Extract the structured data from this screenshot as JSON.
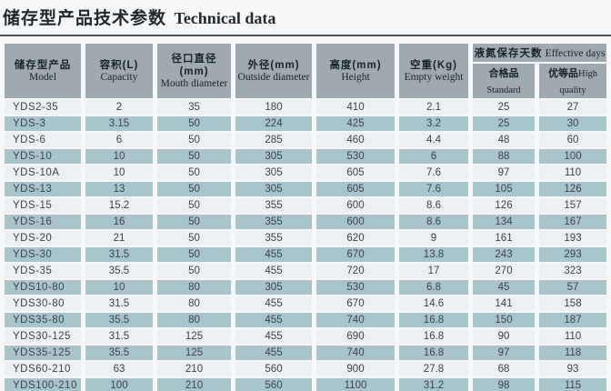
{
  "title": {
    "zh": "储存型产品技术参数",
    "en": "Technical data"
  },
  "table": {
    "columns": [
      {
        "zh": "储存型产品",
        "en": "Model"
      },
      {
        "zh": "容积(L)",
        "en": "Capacity"
      },
      {
        "zh": "径口直径(mm)",
        "en": "Mouth diameter"
      },
      {
        "zh": "外径(mm)",
        "en": "Outside diameter"
      },
      {
        "zh": "高度(mm)",
        "en": "Height"
      },
      {
        "zh": "空重(Kg)",
        "en": "Empty weight"
      }
    ],
    "group": {
      "zh": "液氮保存天数",
      "en": "Effective days",
      "sub": [
        {
          "zh": "合格品",
          "en": "Standard"
        },
        {
          "zh": "优等品",
          "en": "High quality"
        }
      ]
    },
    "rows": [
      [
        "YDS2-35",
        "2",
        "35",
        "180",
        "410",
        "2.1",
        "25",
        "27"
      ],
      [
        "YDS-3",
        "3.15",
        "50",
        "224",
        "425",
        "3.2",
        "25",
        "30"
      ],
      [
        "YDS-6",
        "6",
        "50",
        "285",
        "460",
        "4.4",
        "48",
        "60"
      ],
      [
        "YDS-10",
        "10",
        "50",
        "305",
        "530",
        "6",
        "88",
        "100"
      ],
      [
        "YDS-10A",
        "10",
        "50",
        "305",
        "605",
        "7.6",
        "97",
        "110"
      ],
      [
        "YDS-13",
        "13",
        "50",
        "305",
        "605",
        "7.6",
        "105",
        "126"
      ],
      [
        "YDS-15",
        "15.2",
        "50",
        "355",
        "600",
        "8.6",
        "126",
        "157"
      ],
      [
        "YDS-16",
        "16",
        "50",
        "355",
        "600",
        "8.6",
        "134",
        "167"
      ],
      [
        "YDS-20",
        "21",
        "50",
        "355",
        "620",
        "9",
        "161",
        "193"
      ],
      [
        "YDS-30",
        "31.5",
        "50",
        "455",
        "670",
        "13.8",
        "243",
        "293"
      ],
      [
        "YDS-35",
        "35.5",
        "50",
        "455",
        "720",
        "17",
        "270",
        "323"
      ],
      [
        "YDS10-80",
        "10",
        "80",
        "305",
        "530",
        "6.8",
        "45",
        "57"
      ],
      [
        "YDS30-80",
        "31.5",
        "80",
        "455",
        "670",
        "14.6",
        "141",
        "158"
      ],
      [
        "YDS35-80",
        "35.5",
        "80",
        "455",
        "740",
        "16.8",
        "150",
        "187"
      ],
      [
        "YDS30-125",
        "31.5",
        "125",
        "455",
        "690",
        "16.8",
        "90",
        "110"
      ],
      [
        "YDS35-125",
        "35.5",
        "125",
        "455",
        "740",
        "16.8",
        "97",
        "118"
      ],
      [
        "YDS60-210",
        "63",
        "210",
        "560",
        "900",
        "27.8",
        "68",
        "93"
      ],
      [
        "YDS100-210",
        "100",
        "210",
        "560",
        "1100",
        "31.2",
        "98",
        "115"
      ]
    ]
  }
}
